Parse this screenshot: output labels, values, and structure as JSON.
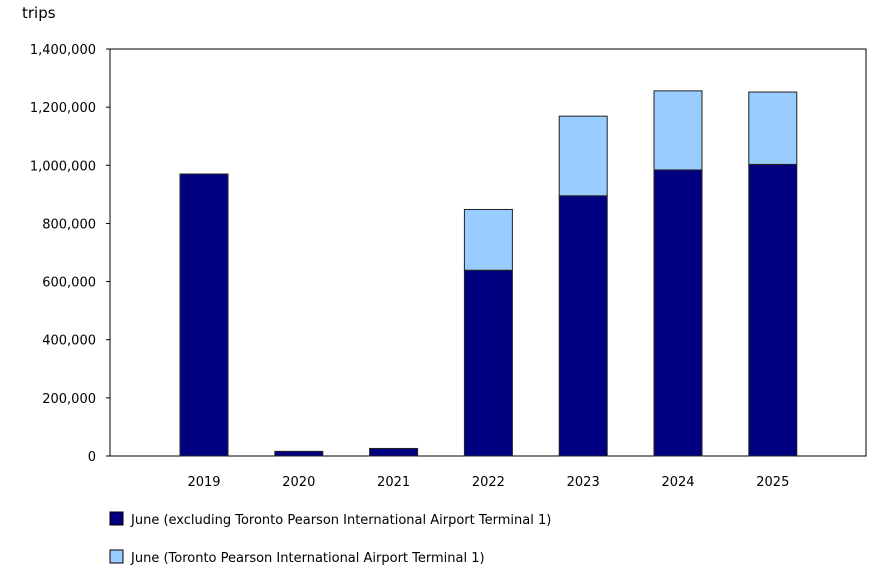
{
  "chart_data": {
    "type": "bar",
    "stacked": true,
    "ylabel": "trips",
    "ylim": [
      0,
      1400000
    ],
    "yticks": [
      "0",
      "200,000",
      "400,000",
      "600,000",
      "800,000",
      "1,000,000",
      "1,200,000",
      "1,400,000"
    ],
    "categories": [
      "2019",
      "2020",
      "2021",
      "2022",
      "2023",
      "2024",
      "2025"
    ],
    "series": [
      {
        "name": "June (excluding Toronto Pearson International Airport Terminal 1)",
        "color": "#000080",
        "values": [
          970000,
          16000,
          26000,
          639000,
          895000,
          984000,
          1003000
        ]
      },
      {
        "name": "June (Toronto Pearson International Airport Terminal 1)",
        "color": "#99ccff",
        "values": [
          0,
          0,
          0,
          209000,
          274000,
          272000,
          249000
        ]
      }
    ],
    "grid": false,
    "legend": "bottom"
  }
}
